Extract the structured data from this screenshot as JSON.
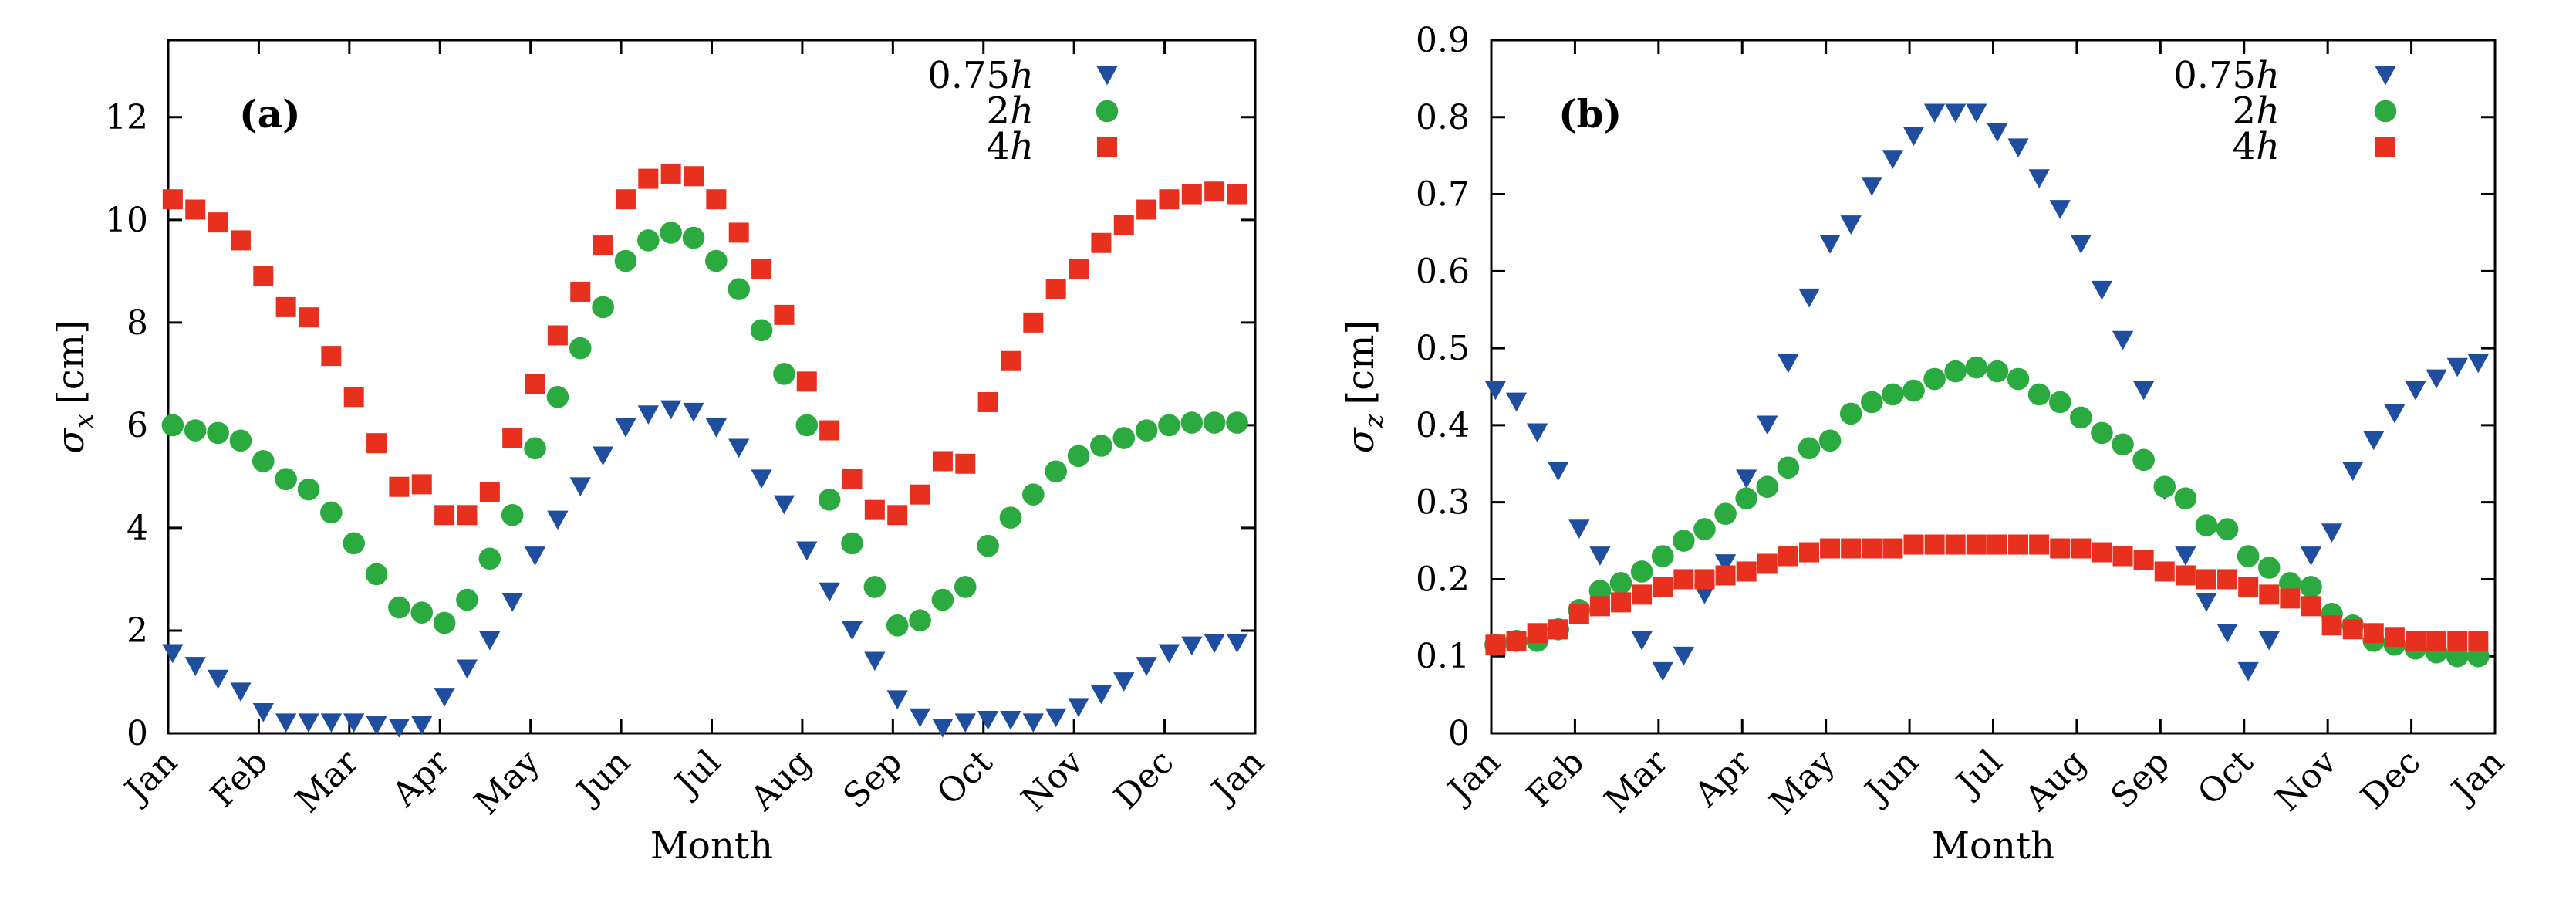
{
  "figure": {
    "colors": {
      "tri": "#1F4E9E",
      "circ": "#2BAA3F",
      "sq": "#E8301E"
    }
  },
  "chart_data": [
    {
      "type": "scatter",
      "panel_label": "(a)",
      "xlabel": "Month",
      "ylabel_symbol": "σ",
      "ylabel_sub": "x",
      "ylabel_unit": "[cm]",
      "ylim": [
        0,
        13.5
      ],
      "yticks": [
        0,
        2,
        4,
        6,
        8,
        10,
        12
      ],
      "ytick_labels": [
        "0",
        "2",
        "4",
        "6",
        "8",
        "10",
        "12"
      ],
      "xlim": [
        0,
        12
      ],
      "xtick_labels": [
        "Jan",
        "Feb",
        "Mar",
        "Apr",
        "May",
        "Jun",
        "Jul",
        "Aug",
        "Sep",
        "Oct",
        "Nov",
        "Dec",
        "Jan"
      ],
      "legend_position": "top-right",
      "series": [
        {
          "name": "0.75h",
          "legend": "0.75",
          "marker": "triangle-down",
          "color_key": "tri",
          "x": [
            0.05,
            0.3,
            0.55,
            0.8,
            1.05,
            1.3,
            1.55,
            1.8,
            2.05,
            2.3,
            2.55,
            2.8,
            3.05,
            3.3,
            3.55,
            3.8,
            4.05,
            4.3,
            4.55,
            4.8,
            5.05,
            5.3,
            5.55,
            5.8,
            6.05,
            6.3,
            6.55,
            6.8,
            7.05,
            7.3,
            7.55,
            7.8,
            8.05,
            8.3,
            8.55,
            8.8,
            9.05,
            9.3,
            9.55,
            9.8,
            10.05,
            10.3,
            10.55,
            10.8,
            11.05,
            11.3,
            11.55,
            11.8
          ],
          "y": [
            1.55,
            1.3,
            1.05,
            0.8,
            0.4,
            0.2,
            0.2,
            0.2,
            0.2,
            0.15,
            0.1,
            0.15,
            0.7,
            1.25,
            1.8,
            2.55,
            3.45,
            4.15,
            4.8,
            5.4,
            5.95,
            6.2,
            6.3,
            6.25,
            5.95,
            5.55,
            4.95,
            4.45,
            3.55,
            2.75,
            2.0,
            1.4,
            0.65,
            0.3,
            0.1,
            0.2,
            0.25,
            0.25,
            0.2,
            0.3,
            0.5,
            0.75,
            1.0,
            1.3,
            1.55,
            1.7,
            1.75,
            1.75
          ]
        },
        {
          "name": "2h",
          "legend": "2",
          "marker": "circle",
          "color_key": "circ",
          "x": [
            0.05,
            0.3,
            0.55,
            0.8,
            1.05,
            1.3,
            1.55,
            1.8,
            2.05,
            2.3,
            2.55,
            2.8,
            3.05,
            3.3,
            3.55,
            3.8,
            4.05,
            4.3,
            4.55,
            4.8,
            5.05,
            5.3,
            5.55,
            5.8,
            6.05,
            6.3,
            6.55,
            6.8,
            7.05,
            7.3,
            7.55,
            7.8,
            8.05,
            8.3,
            8.55,
            8.8,
            9.05,
            9.3,
            9.55,
            9.8,
            10.05,
            10.3,
            10.55,
            10.8,
            11.05,
            11.3,
            11.55,
            11.8
          ],
          "y": [
            6.0,
            5.9,
            5.85,
            5.7,
            5.3,
            4.95,
            4.75,
            4.3,
            3.7,
            3.1,
            2.45,
            2.35,
            2.15,
            2.6,
            3.4,
            4.25,
            5.55,
            6.55,
            7.5,
            8.3,
            9.2,
            9.6,
            9.75,
            9.65,
            9.2,
            8.65,
            7.85,
            7.0,
            6.0,
            4.55,
            3.7,
            2.85,
            2.1,
            2.2,
            2.6,
            2.85,
            3.65,
            4.2,
            4.65,
            5.1,
            5.4,
            5.6,
            5.75,
            5.9,
            6.0,
            6.05,
            6.05,
            6.05
          ]
        },
        {
          "name": "4h",
          "legend": "4",
          "marker": "square",
          "color_key": "sq",
          "x": [
            0.05,
            0.3,
            0.55,
            0.8,
            1.05,
            1.3,
            1.55,
            1.8,
            2.05,
            2.3,
            2.55,
            2.8,
            3.05,
            3.3,
            3.55,
            3.8,
            4.05,
            4.3,
            4.55,
            4.8,
            5.05,
            5.3,
            5.55,
            5.8,
            6.05,
            6.3,
            6.55,
            6.8,
            7.05,
            7.3,
            7.55,
            7.8,
            8.05,
            8.3,
            8.55,
            8.8,
            9.05,
            9.3,
            9.55,
            9.8,
            10.05,
            10.3,
            10.55,
            10.8,
            11.05,
            11.3,
            11.55,
            11.8
          ],
          "y": [
            10.4,
            10.2,
            9.95,
            9.6,
            8.9,
            8.3,
            8.1,
            7.35,
            6.55,
            5.65,
            4.8,
            4.85,
            4.25,
            4.25,
            4.7,
            5.75,
            6.8,
            7.75,
            8.6,
            9.5,
            10.4,
            10.8,
            10.9,
            10.85,
            10.4,
            9.75,
            9.05,
            8.15,
            6.85,
            5.9,
            4.95,
            4.35,
            4.25,
            4.65,
            5.3,
            5.25,
            6.45,
            7.25,
            8.0,
            8.65,
            9.05,
            9.55,
            9.9,
            10.2,
            10.4,
            10.5,
            10.55,
            10.5
          ]
        }
      ]
    },
    {
      "type": "scatter",
      "panel_label": "(b)",
      "xlabel": "Month",
      "ylabel_symbol": "σ",
      "ylabel_sub": "z",
      "ylabel_unit": "[cm]",
      "ylim": [
        0,
        0.9
      ],
      "yticks": [
        0,
        0.1,
        0.2,
        0.3,
        0.4,
        0.5,
        0.6,
        0.7,
        0.8,
        0.9
      ],
      "ytick_labels": [
        "0",
        "0.1",
        "0.2",
        "0.3",
        "0.4",
        "0.5",
        "0.6",
        "0.7",
        "0.8",
        "0.9"
      ],
      "xlim": [
        0,
        12
      ],
      "xtick_labels": [
        "Jan",
        "Feb",
        "Mar",
        "Apr",
        "May",
        "Jun",
        "Jul",
        "Aug",
        "Sep",
        "Oct",
        "Nov",
        "Dec",
        "Jan"
      ],
      "legend_position": "top-right",
      "series": [
        {
          "name": "0.75h",
          "legend": "0.75",
          "marker": "triangle-down",
          "color_key": "tri",
          "x": [
            0.05,
            0.3,
            0.55,
            0.8,
            1.05,
            1.3,
            1.55,
            1.8,
            2.05,
            2.3,
            2.55,
            2.8,
            3.05,
            3.3,
            3.55,
            3.8,
            4.05,
            4.3,
            4.55,
            4.8,
            5.05,
            5.3,
            5.55,
            5.8,
            6.05,
            6.3,
            6.55,
            6.8,
            7.05,
            7.3,
            7.55,
            7.8,
            8.05,
            8.3,
            8.55,
            8.8,
            9.05,
            9.3,
            9.55,
            9.8,
            10.05,
            10.3,
            10.55,
            10.8,
            11.05,
            11.3,
            11.55,
            11.8
          ],
          "y": [
            0.445,
            0.43,
            0.39,
            0.34,
            0.265,
            0.23,
            0.17,
            0.12,
            0.08,
            0.1,
            0.18,
            0.22,
            0.33,
            0.4,
            0.48,
            0.565,
            0.635,
            0.66,
            0.71,
            0.745,
            0.775,
            0.805,
            0.805,
            0.805,
            0.78,
            0.76,
            0.72,
            0.68,
            0.635,
            0.575,
            0.51,
            0.445,
            0.315,
            0.23,
            0.17,
            0.13,
            0.08,
            0.12,
            0.185,
            0.23,
            0.26,
            0.34,
            0.38,
            0.415,
            0.445,
            0.46,
            0.475,
            0.48
          ]
        },
        {
          "name": "2h",
          "legend": "2",
          "marker": "circle",
          "color_key": "circ",
          "x": [
            0.05,
            0.3,
            0.55,
            0.8,
            1.05,
            1.3,
            1.55,
            1.8,
            2.05,
            2.3,
            2.55,
            2.8,
            3.05,
            3.3,
            3.55,
            3.8,
            4.05,
            4.3,
            4.55,
            4.8,
            5.05,
            5.3,
            5.55,
            5.8,
            6.05,
            6.3,
            6.55,
            6.8,
            7.05,
            7.3,
            7.55,
            7.8,
            8.05,
            8.3,
            8.55,
            8.8,
            9.05,
            9.3,
            9.55,
            9.8,
            10.05,
            10.3,
            10.55,
            10.8,
            11.05,
            11.3,
            11.55,
            11.8
          ],
          "y": [
            0.115,
            0.12,
            0.12,
            0.135,
            0.16,
            0.185,
            0.195,
            0.21,
            0.23,
            0.25,
            0.265,
            0.285,
            0.305,
            0.32,
            0.345,
            0.37,
            0.38,
            0.415,
            0.43,
            0.44,
            0.445,
            0.46,
            0.47,
            0.475,
            0.47,
            0.46,
            0.44,
            0.43,
            0.41,
            0.39,
            0.375,
            0.355,
            0.32,
            0.305,
            0.27,
            0.265,
            0.23,
            0.215,
            0.195,
            0.19,
            0.155,
            0.14,
            0.12,
            0.115,
            0.11,
            0.105,
            0.1,
            0.1
          ]
        },
        {
          "name": "4h",
          "legend": "4",
          "marker": "square",
          "color_key": "sq",
          "x": [
            0.05,
            0.3,
            0.55,
            0.8,
            1.05,
            1.3,
            1.55,
            1.8,
            2.05,
            2.3,
            2.55,
            2.8,
            3.05,
            3.3,
            3.55,
            3.8,
            4.05,
            4.3,
            4.55,
            4.8,
            5.05,
            5.3,
            5.55,
            5.8,
            6.05,
            6.3,
            6.55,
            6.8,
            7.05,
            7.3,
            7.55,
            7.8,
            8.05,
            8.3,
            8.55,
            8.8,
            9.05,
            9.3,
            9.55,
            9.8,
            10.05,
            10.3,
            10.55,
            10.8,
            11.05,
            11.3,
            11.55,
            11.8
          ],
          "y": [
            0.115,
            0.12,
            0.13,
            0.135,
            0.155,
            0.165,
            0.17,
            0.18,
            0.19,
            0.2,
            0.2,
            0.205,
            0.21,
            0.22,
            0.23,
            0.235,
            0.24,
            0.24,
            0.24,
            0.24,
            0.245,
            0.245,
            0.245,
            0.245,
            0.245,
            0.245,
            0.245,
            0.24,
            0.24,
            0.235,
            0.23,
            0.225,
            0.21,
            0.205,
            0.2,
            0.2,
            0.19,
            0.18,
            0.175,
            0.165,
            0.14,
            0.135,
            0.13,
            0.125,
            0.12,
            0.12,
            0.12,
            0.12
          ]
        }
      ]
    }
  ]
}
